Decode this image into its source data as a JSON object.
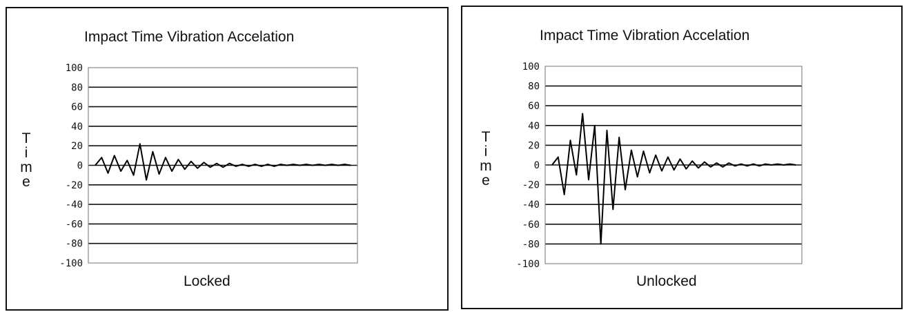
{
  "chart_data": [
    {
      "type": "line",
      "title": "Impact Time Vibration Accelation",
      "xlabel": "Locked",
      "ylabel": "Time",
      "ylim": [
        -100,
        100
      ],
      "yticks": [
        "100",
        "80",
        "60",
        "40",
        "20",
        "0",
        "-20",
        "-40",
        "-60",
        "-80",
        "-100"
      ],
      "grid": true,
      "x": [
        0,
        1,
        2,
        3,
        4,
        5,
        6,
        7,
        8,
        9,
        10,
        11,
        12,
        13,
        14,
        15,
        16,
        17,
        18,
        19,
        20,
        21,
        22,
        23,
        24,
        25,
        26,
        27,
        28,
        29,
        30,
        31,
        32,
        33,
        34,
        35,
        36,
        37,
        38,
        39,
        40
      ],
      "series": [
        {
          "values": [
            0,
            8,
            -8,
            10,
            -6,
            5,
            -10,
            22,
            -15,
            14,
            -9,
            8,
            -6,
            6,
            -4,
            4,
            -3,
            3,
            -2,
            2,
            -2,
            2,
            -1,
            1,
            -1,
            1,
            -1,
            1,
            -1,
            1,
            0,
            1,
            0,
            1,
            0,
            1,
            0,
            1,
            0,
            1,
            0
          ]
        }
      ]
    },
    {
      "type": "line",
      "title": "Impact Time Vibration Accelation",
      "xlabel": "Unlocked",
      "ylabel": "Time",
      "ylim": [
        -100,
        100
      ],
      "yticks": [
        "100",
        "80",
        "60",
        "40",
        "20",
        "0",
        "-20",
        "-40",
        "-60",
        "-80",
        "-100"
      ],
      "grid": true,
      "x": [
        0,
        1,
        2,
        3,
        4,
        5,
        6,
        7,
        8,
        9,
        10,
        11,
        12,
        13,
        14,
        15,
        16,
        17,
        18,
        19,
        20,
        21,
        22,
        23,
        24,
        25,
        26,
        27,
        28,
        29,
        30,
        31,
        32,
        33,
        34,
        35,
        36,
        37,
        38,
        39,
        40
      ],
      "series": [
        {
          "values": [
            0,
            8,
            -30,
            25,
            -10,
            52,
            -15,
            40,
            -80,
            35,
            -45,
            28,
            -25,
            15,
            -12,
            14,
            -8,
            10,
            -6,
            8,
            -5,
            6,
            -4,
            4,
            -3,
            3,
            -2,
            2,
            -2,
            2,
            -1,
            1,
            -1,
            1,
            -1,
            1,
            0,
            1,
            0,
            1,
            0
          ]
        }
      ]
    }
  ]
}
